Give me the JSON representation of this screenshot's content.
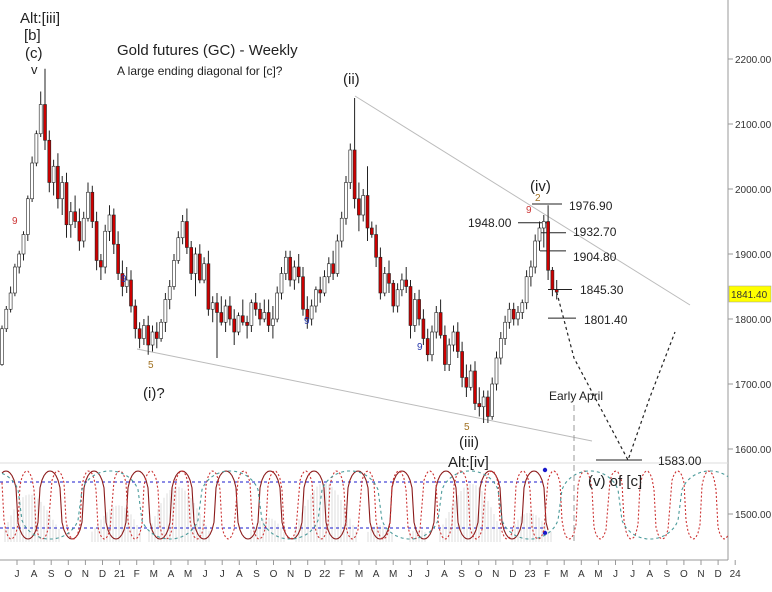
{
  "chart_data": {
    "type": "candlestick",
    "title": "Gold futures (GC) - Weekly",
    "subtitle": "A large ending diagonal for [c]?",
    "y_axis": {
      "side": "right",
      "ylim": [
        1440,
        2290
      ],
      "ticks": [
        1500,
        1600,
        1700,
        1800,
        1900,
        2000,
        2100,
        2200
      ],
      "tick_labels": [
        "1500.00",
        "1600.00",
        "1700.00",
        "1800.00",
        "1900.00",
        "2000.00",
        "2100.00",
        "2200.00"
      ],
      "last_price": 1841.4,
      "last_price_label": "1841.40"
    },
    "x_axis": {
      "tick_labels": [
        "J",
        "A",
        "S",
        "O",
        "N",
        "D",
        "21",
        "F",
        "M",
        "A",
        "M",
        "J",
        "J",
        "A",
        "S",
        "O",
        "N",
        "D",
        "22",
        "F",
        "M",
        "A",
        "M",
        "J",
        "J",
        "A",
        "S",
        "O",
        "N",
        "D",
        "23",
        "F",
        "M",
        "A",
        "M",
        "J",
        "J",
        "A",
        "S",
        "O",
        "N",
        "D",
        "24"
      ]
    },
    "ohlc": [
      [
        1730,
        1790,
        1728,
        1785
      ],
      [
        1785,
        1820,
        1780,
        1815
      ],
      [
        1815,
        1850,
        1810,
        1840
      ],
      [
        1840,
        1885,
        1835,
        1880
      ],
      [
        1880,
        1905,
        1870,
        1900
      ],
      [
        1900,
        1935,
        1890,
        1930
      ],
      [
        1930,
        1990,
        1920,
        1985
      ],
      [
        1985,
        2050,
        1980,
        2040
      ],
      [
        2040,
        2090,
        2035,
        2085
      ],
      [
        2085,
        2150,
        2080,
        2130
      ],
      [
        2130,
        2185,
        2060,
        2075
      ],
      [
        2075,
        2090,
        1995,
        2010
      ],
      [
        2010,
        2045,
        1990,
        2035
      ],
      [
        2035,
        2055,
        1970,
        1985
      ],
      [
        1985,
        2020,
        1960,
        2010
      ],
      [
        2010,
        2025,
        1925,
        1945
      ],
      [
        1945,
        1980,
        1925,
        1965
      ],
      [
        1965,
        1990,
        1940,
        1950
      ],
      [
        1950,
        1970,
        1905,
        1920
      ],
      [
        1920,
        1965,
        1910,
        1955
      ],
      [
        1955,
        2010,
        1950,
        1995
      ],
      [
        1995,
        2005,
        1940,
        1950
      ],
      [
        1950,
        1965,
        1875,
        1890
      ],
      [
        1890,
        1900,
        1860,
        1880
      ],
      [
        1880,
        1945,
        1870,
        1935
      ],
      [
        1935,
        1975,
        1920,
        1960
      ],
      [
        1960,
        1970,
        1900,
        1915
      ],
      [
        1915,
        1935,
        1860,
        1870
      ],
      [
        1870,
        1890,
        1835,
        1850
      ],
      [
        1850,
        1880,
        1840,
        1860
      ],
      [
        1860,
        1875,
        1810,
        1820
      ],
      [
        1820,
        1830,
        1770,
        1785
      ],
      [
        1785,
        1795,
        1755,
        1770
      ],
      [
        1770,
        1800,
        1760,
        1790
      ],
      [
        1790,
        1805,
        1745,
        1760
      ],
      [
        1760,
        1790,
        1750,
        1780
      ],
      [
        1780,
        1795,
        1755,
        1770
      ],
      [
        1770,
        1800,
        1765,
        1795
      ],
      [
        1795,
        1840,
        1780,
        1830
      ],
      [
        1830,
        1860,
        1815,
        1850
      ],
      [
        1850,
        1900,
        1845,
        1890
      ],
      [
        1890,
        1935,
        1885,
        1925
      ],
      [
        1925,
        1960,
        1915,
        1950
      ],
      [
        1950,
        1970,
        1900,
        1910
      ],
      [
        1910,
        1920,
        1860,
        1870
      ],
      [
        1870,
        1910,
        1835,
        1900
      ],
      [
        1900,
        1915,
        1855,
        1860
      ],
      [
        1860,
        1895,
        1855,
        1885
      ],
      [
        1885,
        1905,
        1805,
        1815
      ],
      [
        1815,
        1835,
        1795,
        1825
      ],
      [
        1825,
        1840,
        1740,
        1810
      ],
      [
        1810,
        1835,
        1790,
        1795
      ],
      [
        1795,
        1830,
        1780,
        1820
      ],
      [
        1820,
        1835,
        1790,
        1800
      ],
      [
        1800,
        1815,
        1760,
        1780
      ],
      [
        1780,
        1810,
        1775,
        1805
      ],
      [
        1805,
        1830,
        1790,
        1795
      ],
      [
        1795,
        1805,
        1770,
        1790
      ],
      [
        1790,
        1830,
        1780,
        1825
      ],
      [
        1825,
        1840,
        1805,
        1815
      ],
      [
        1815,
        1825,
        1790,
        1800
      ],
      [
        1800,
        1830,
        1795,
        1810
      ],
      [
        1810,
        1830,
        1780,
        1790
      ],
      [
        1790,
        1820,
        1770,
        1800
      ],
      [
        1800,
        1850,
        1795,
        1840
      ],
      [
        1840,
        1880,
        1830,
        1870
      ],
      [
        1870,
        1905,
        1860,
        1895
      ],
      [
        1895,
        1905,
        1850,
        1860
      ],
      [
        1860,
        1890,
        1845,
        1880
      ],
      [
        1880,
        1900,
        1855,
        1865
      ],
      [
        1865,
        1880,
        1805,
        1815
      ],
      [
        1815,
        1835,
        1785,
        1800
      ],
      [
        1800,
        1830,
        1790,
        1820
      ],
      [
        1820,
        1850,
        1810,
        1845
      ],
      [
        1845,
        1865,
        1825,
        1840
      ],
      [
        1840,
        1875,
        1835,
        1865
      ],
      [
        1865,
        1895,
        1855,
        1885
      ],
      [
        1885,
        1905,
        1860,
        1870
      ],
      [
        1870,
        1930,
        1865,
        1920
      ],
      [
        1920,
        1965,
        1910,
        1955
      ],
      [
        1955,
        2020,
        1945,
        2010
      ],
      [
        2010,
        2070,
        2000,
        2060
      ],
      [
        2060,
        2140,
        1970,
        1985
      ],
      [
        1985,
        2010,
        1935,
        1960
      ],
      [
        1960,
        2000,
        1950,
        1990
      ],
      [
        1990,
        2035,
        1920,
        1940
      ],
      [
        1940,
        1950,
        1925,
        1930
      ],
      [
        1930,
        1945,
        1880,
        1895
      ],
      [
        1895,
        1910,
        1830,
        1840
      ],
      [
        1840,
        1880,
        1835,
        1870
      ],
      [
        1870,
        1890,
        1840,
        1855
      ],
      [
        1855,
        1860,
        1810,
        1820
      ],
      [
        1820,
        1855,
        1810,
        1845
      ],
      [
        1845,
        1870,
        1835,
        1860
      ],
      [
        1860,
        1880,
        1840,
        1850
      ],
      [
        1850,
        1860,
        1770,
        1790
      ],
      [
        1790,
        1840,
        1780,
        1830
      ],
      [
        1830,
        1845,
        1790,
        1800
      ],
      [
        1800,
        1815,
        1760,
        1770
      ],
      [
        1770,
        1785,
        1735,
        1745
      ],
      [
        1745,
        1790,
        1735,
        1780
      ],
      [
        1780,
        1820,
        1770,
        1810
      ],
      [
        1810,
        1830,
        1770,
        1775
      ],
      [
        1775,
        1790,
        1720,
        1730
      ],
      [
        1730,
        1770,
        1720,
        1760
      ],
      [
        1760,
        1790,
        1750,
        1780
      ],
      [
        1780,
        1795,
        1740,
        1750
      ],
      [
        1750,
        1765,
        1695,
        1710
      ],
      [
        1710,
        1730,
        1680,
        1695
      ],
      [
        1695,
        1730,
        1690,
        1720
      ],
      [
        1720,
        1735,
        1660,
        1670
      ],
      [
        1670,
        1695,
        1650,
        1665
      ],
      [
        1665,
        1690,
        1640,
        1680
      ],
      [
        1680,
        1690,
        1640,
        1650
      ],
      [
        1650,
        1710,
        1645,
        1700
      ],
      [
        1700,
        1750,
        1690,
        1740
      ],
      [
        1740,
        1780,
        1730,
        1770
      ],
      [
        1770,
        1805,
        1760,
        1795
      ],
      [
        1795,
        1825,
        1785,
        1815
      ],
      [
        1815,
        1825,
        1790,
        1800
      ],
      [
        1800,
        1820,
        1790,
        1810
      ],
      [
        1810,
        1830,
        1800,
        1825
      ],
      [
        1825,
        1875,
        1815,
        1865
      ],
      [
        1865,
        1890,
        1850,
        1880
      ],
      [
        1880,
        1930,
        1870,
        1920
      ],
      [
        1920,
        1950,
        1905,
        1940
      ],
      [
        1940,
        1960,
        1910,
        1950
      ],
      [
        1950,
        1975,
        1860,
        1875
      ],
      [
        1875,
        1880,
        1835,
        1845
      ],
      [
        1845,
        1860,
        1830,
        1841.4
      ]
    ],
    "candle_colors": {
      "up": "#ffffff",
      "down": "#cc0000",
      "outline": "#222222"
    },
    "wave_labels": [
      "Alt:[iii]",
      "[b]",
      "(c)",
      "(ii)",
      "(i)?",
      "(iii)",
      "Alt:[iv]",
      "(iv)",
      "(v) of [c]"
    ],
    "price_levels": [
      {
        "value": 1976.9,
        "label": "1976.90"
      },
      {
        "value": 1948.0,
        "label": "1948.00"
      },
      {
        "value": 1932.7,
        "label": "1932.70"
      },
      {
        "value": 1904.8,
        "label": "1904.80"
      },
      {
        "value": 1845.3,
        "label": "1845.30"
      },
      {
        "value": 1801.4,
        "label": "1801.40"
      },
      {
        "value": 1583.0,
        "label": "1583.00"
      }
    ],
    "annotations": [
      "Early April"
    ],
    "sequential_counts": [
      {
        "text": "9",
        "color": "#cc3333"
      },
      {
        "text": "9",
        "color": "#2233aa"
      },
      {
        "text": "5",
        "color": "#a07020"
      },
      {
        "text": "9",
        "color": "#2233aa"
      },
      {
        "text": "9",
        "color": "#2233aa"
      },
      {
        "text": "5",
        "color": "#a07020"
      },
      {
        "text": "9",
        "color": "#cc3333"
      },
      {
        "text": "2",
        "color": "#a07020"
      }
    ],
    "trendlines": [
      "diagonal upper line from (ii) high",
      "diagonal lower line from (i) low"
    ],
    "projection": "dotted path down to about 1583 then back up",
    "indicator": {
      "name": "cycle oscillator",
      "series_colors": [
        "#8b1a1a",
        "#cc3333",
        "#4a9a9a"
      ],
      "guide_color": "#1a1acc"
    },
    "colors": {
      "background": "#ffffff",
      "last_price_bg": "#ffff00",
      "grid_dash": "#1a1acc"
    }
  }
}
